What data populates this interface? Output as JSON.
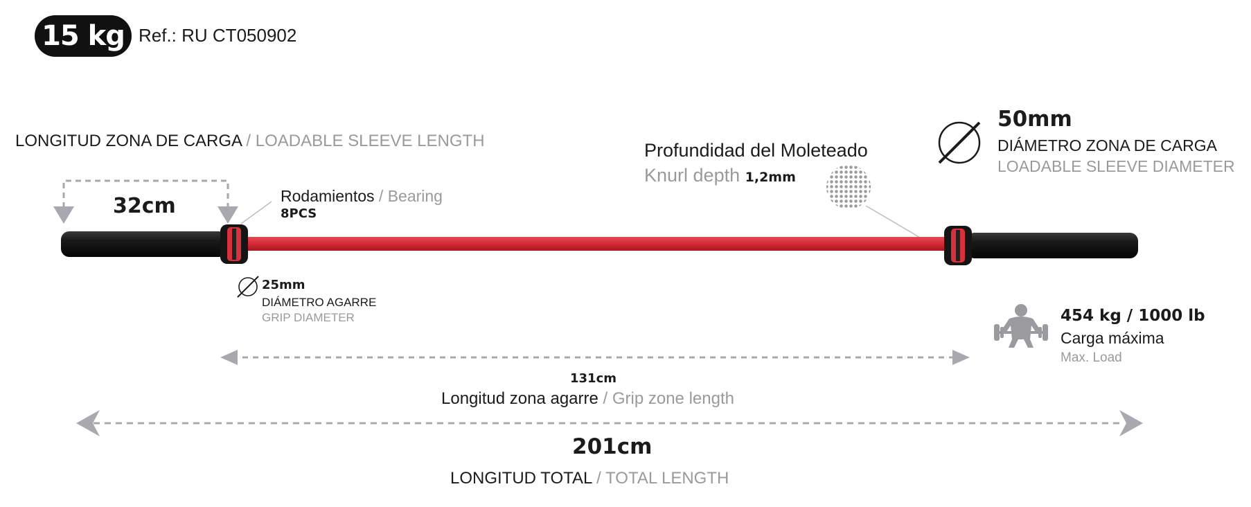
{
  "header": {
    "weight": "15 kg",
    "ref": "Ref.: RU CT050902"
  },
  "sleeve_length": {
    "label_es": "LONGITUD ZONA DE CARGA",
    "label_en": "/ LOADABLE SLEEVE LENGTH",
    "value": "32cm"
  },
  "bearing": {
    "label_es": "Rodamientos",
    "label_en": "/ Bearing",
    "count": "8PCS"
  },
  "knurl": {
    "label_es": "Profundidad del Moleteado",
    "label_en": "Knurl depth",
    "value": "1,2mm"
  },
  "sleeve_diameter": {
    "value": "50mm",
    "label_es": "DIÁMETRO ZONA DE CARGA",
    "label_en": "LOADABLE SLEEVE DIAMETER"
  },
  "grip_diameter": {
    "value": "25mm",
    "label_es": "DIÁMETRO AGARRE",
    "label_en": "GRIP DIAMETER"
  },
  "max_load": {
    "value": "454 kg / 1000 lb",
    "label_es": "Carga máxima",
    "label_en": "Max. Load"
  },
  "grip_zone": {
    "value": "131cm",
    "label_es": "Longitud zona agarre",
    "label_en": "/ Grip zone length"
  },
  "total_length": {
    "value": "201cm",
    "label_es": "LONGITUD TOTAL",
    "label_en": "/ TOTAL LENGTH"
  },
  "colors": {
    "shaft": "#d42a35",
    "sleeve": "#161616",
    "collar_ring": "#d7323c",
    "arrow": "#a8a8ae",
    "accent_text": "#1b1b1b",
    "muted_text": "#9a9a9a"
  },
  "icons": [
    "diameter-icon",
    "weightlifter-icon",
    "knurl-texture-icon"
  ]
}
